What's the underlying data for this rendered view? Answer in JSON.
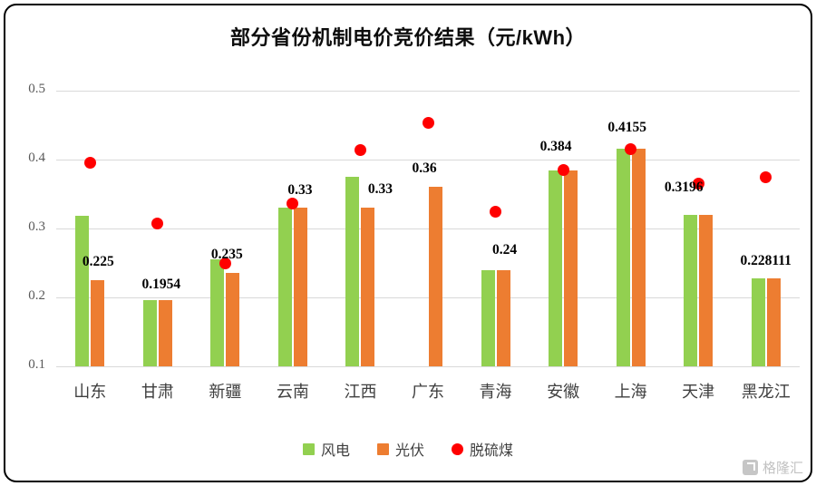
{
  "title": "部分省份机制电价竞价结果（元/kWh）",
  "colors": {
    "wind": "#92D050",
    "solar": "#ED7D31",
    "coal": "#FF0000",
    "grid": "#D9D9D9",
    "axis_text": "#595959",
    "category_text": "#3f3f3f",
    "label_text": "#000000",
    "frame": "#000000",
    "watermark": "#c2c2c2"
  },
  "chart_data": {
    "type": "bar",
    "title": "部分省份机制电价竞价结果（元/kWh）",
    "xlabel": "",
    "ylabel": "",
    "categories": [
      "山东",
      "甘肃",
      "新疆",
      "云南",
      "江西",
      "广东",
      "青海",
      "安徽",
      "上海",
      "天津",
      "黑龙江"
    ],
    "series": [
      {
        "name": "风电",
        "type": "bar",
        "color": "#92D050",
        "values": [
          0.319,
          0.1954,
          0.255,
          0.33,
          0.375,
          null,
          0.24,
          0.384,
          0.4155,
          0.3196,
          0.228111
        ]
      },
      {
        "name": "光伏",
        "type": "bar",
        "color": "#ED7D31",
        "values": [
          0.225,
          0.1954,
          0.235,
          0.33,
          0.33,
          0.36,
          0.24,
          0.384,
          0.4155,
          0.3196,
          0.228111
        ]
      },
      {
        "name": "脱硫煤",
        "type": "scatter",
        "color": "#FF0000",
        "values": [
          0.3949,
          0.3078,
          0.25,
          0.3358,
          0.4143,
          0.453,
          0.3247,
          0.3844,
          0.4155,
          0.3655,
          0.374
        ]
      }
    ],
    "data_labels": [
      "0.225",
      "0.1954",
      "0.235",
      "0.33",
      "0.33",
      "0.36",
      "0.24",
      "0.384",
      "0.4155",
      "0.3196",
      "0.228111"
    ],
    "yticks": [
      0.1,
      0.2,
      0.3,
      0.4,
      0.5
    ],
    "ylim": [
      0.1,
      0.5
    ],
    "grid": true,
    "legend_position": "bottom"
  },
  "watermark": {
    "text": "格隆汇"
  }
}
